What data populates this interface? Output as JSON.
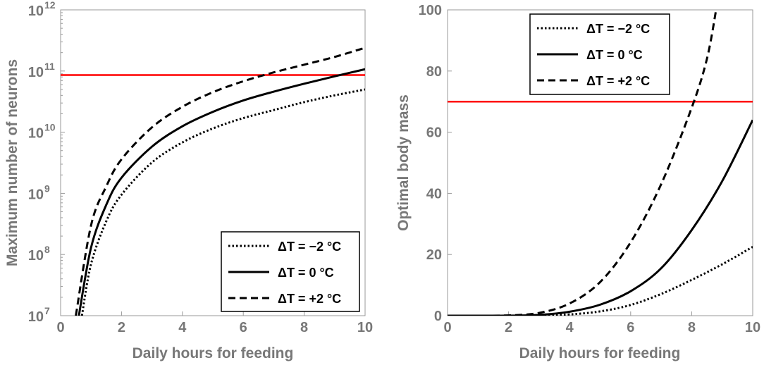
{
  "chart_data": [
    {
      "type": "line",
      "id": "left",
      "xlabel": "Daily hours for feeding",
      "ylabel": "Maximum number of neurons",
      "yscale": "log",
      "xlim": [
        0,
        10
      ],
      "ylim_exp": [
        7,
        12
      ],
      "x_ticks": [
        "0",
        "2",
        "4",
        "6",
        "8",
        "10"
      ],
      "y_tick_base": "10",
      "y_tick_exponents": [
        "7",
        "8",
        "9",
        "10",
        "11",
        "12"
      ],
      "reference_line": {
        "y": 86000000000,
        "color": "#ff0000"
      },
      "legend": {
        "position": "bottom-right"
      },
      "series": [
        {
          "name": "ΔT = −2 °C",
          "dash": "dotted",
          "x": [
            0.7,
            1,
            1.5,
            2,
            3,
            4,
            5,
            6,
            7,
            8,
            9,
            10
          ],
          "y": [
            10000000,
            70000000,
            350000000,
            950000000,
            3200000000,
            6800000000,
            11500000000,
            17000000000,
            23000000000,
            31000000000,
            40000000000,
            50000000000
          ]
        },
        {
          "name": "ΔT = 0 °C",
          "dash": "solid",
          "x": [
            0.6,
            1,
            1.5,
            2,
            3,
            4,
            5,
            6,
            7,
            8,
            9,
            10
          ],
          "y": [
            10000000,
            130000000,
            650000000,
            1800000000,
            5800000000,
            12500000000,
            21500000000,
            33000000000,
            46000000000,
            62000000000,
            82000000000,
            107000000000
          ]
        },
        {
          "name": "ΔT = +2 °C",
          "dash": "dashed",
          "x": [
            0.5,
            1,
            1.5,
            2,
            3,
            4,
            5,
            6,
            7,
            8,
            9,
            10
          ],
          "y": [
            10000000,
            300000000,
            1300000000,
            3600000000,
            12000000000,
            26000000000,
            45000000000,
            68000000000,
            95000000000,
            127000000000,
            170000000000,
            240000000000
          ]
        }
      ]
    },
    {
      "type": "line",
      "id": "right",
      "xlabel": "Daily hours for feeding",
      "ylabel": "Optimal body mass",
      "xlim": [
        0,
        10
      ],
      "ylim": [
        0,
        100
      ],
      "x_ticks": [
        "0",
        "2",
        "4",
        "6",
        "8",
        "10"
      ],
      "y_ticks": [
        "0",
        "20",
        "40",
        "60",
        "80",
        "100"
      ],
      "reference_line": {
        "y": 70,
        "color": "#ff0000"
      },
      "legend": {
        "position": "top-right"
      },
      "series": [
        {
          "name": "ΔT = −2 °C",
          "dash": "dotted",
          "x": [
            0,
            1,
            2,
            3,
            4,
            5,
            6,
            7,
            8,
            9,
            10
          ],
          "y": [
            0,
            0,
            0,
            0.04,
            0.4,
            1.4,
            3.5,
            7.1,
            11.7,
            16.8,
            22.5
          ]
        },
        {
          "name": "ΔT = 0 °C",
          "dash": "solid",
          "x": [
            0,
            1,
            2,
            3,
            4,
            5,
            6,
            7,
            8,
            9,
            10
          ],
          "y": [
            0,
            0,
            0.02,
            0.25,
            1.3,
            3.6,
            8,
            15.5,
            28,
            44,
            64
          ]
        },
        {
          "name": "ΔT = +2 °C",
          "dash": "dashed",
          "x": [
            0,
            1,
            2,
            3,
            4,
            5,
            6,
            7,
            8,
            8.5,
            8.8
          ],
          "y": [
            0,
            0,
            0.1,
            0.9,
            4,
            11,
            24,
            43,
            68,
            84,
            100
          ]
        }
      ]
    }
  ]
}
